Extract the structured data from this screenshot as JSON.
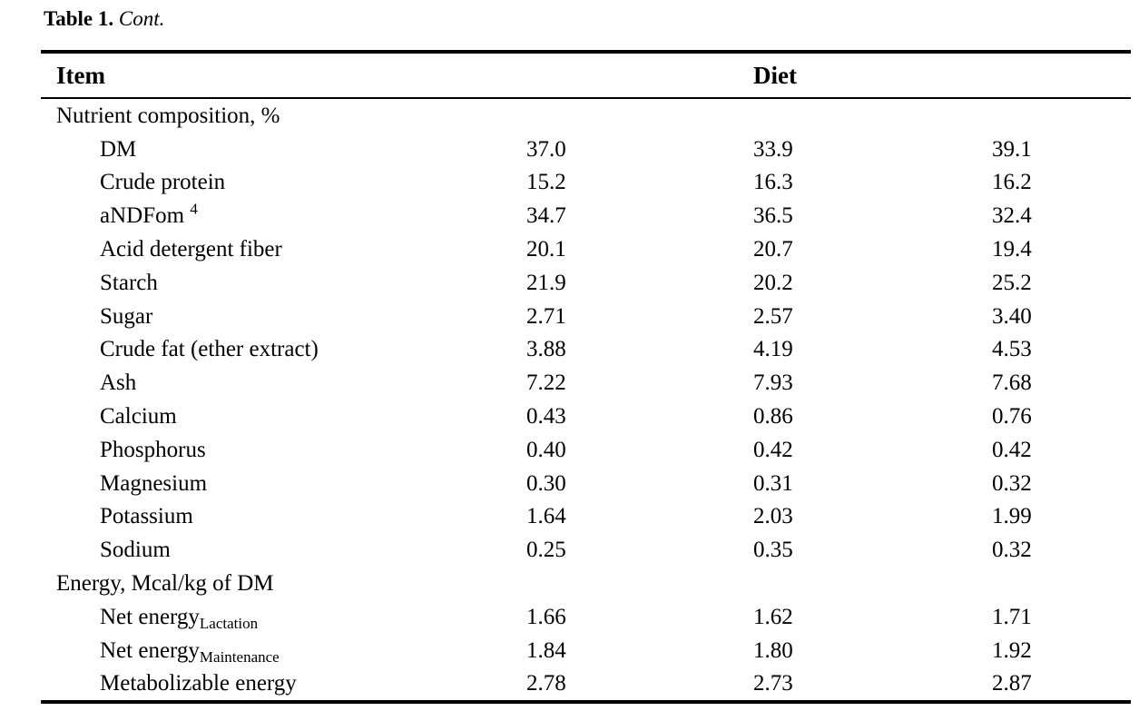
{
  "title": {
    "label": "Table 1.",
    "cont": "Cont."
  },
  "table": {
    "columns": {
      "item": "Item",
      "diet": "Diet"
    },
    "rows": [
      {
        "type": "section",
        "label": "Nutrient composition, %",
        "values": [
          "",
          "",
          ""
        ]
      },
      {
        "type": "item",
        "label": "DM",
        "values": [
          "37.0",
          "33.9",
          "39.1"
        ]
      },
      {
        "type": "item",
        "label": "Crude protein",
        "values": [
          "15.2",
          "16.3",
          "16.2"
        ]
      },
      {
        "type": "item",
        "label": "aNDFom",
        "sup": "4",
        "values": [
          "34.7",
          "36.5",
          "32.4"
        ]
      },
      {
        "type": "item",
        "label": "Acid detergent fiber",
        "values": [
          "20.1",
          "20.7",
          "19.4"
        ]
      },
      {
        "type": "item",
        "label": "Starch",
        "values": [
          "21.9",
          "20.2",
          "25.2"
        ]
      },
      {
        "type": "item",
        "label": "Sugar",
        "values": [
          "2.71",
          "2.57",
          "3.40"
        ]
      },
      {
        "type": "item",
        "label": "Crude fat (ether extract)",
        "values": [
          "3.88",
          "4.19",
          "4.53"
        ]
      },
      {
        "type": "item",
        "label": "Ash",
        "values": [
          "7.22",
          "7.93",
          "7.68"
        ]
      },
      {
        "type": "item",
        "label": "Calcium",
        "values": [
          "0.43",
          "0.86",
          "0.76"
        ]
      },
      {
        "type": "item",
        "label": "Phosphorus",
        "values": [
          "0.40",
          "0.42",
          "0.42"
        ]
      },
      {
        "type": "item",
        "label": "Magnesium",
        "values": [
          "0.30",
          "0.31",
          "0.32"
        ]
      },
      {
        "type": "item",
        "label": "Potassium",
        "values": [
          "1.64",
          "2.03",
          "1.99"
        ]
      },
      {
        "type": "item",
        "label": "Sodium",
        "values": [
          "0.25",
          "0.35",
          "0.32"
        ]
      },
      {
        "type": "section",
        "label": "Energy, Mcal/kg of DM",
        "values": [
          "",
          "",
          ""
        ]
      },
      {
        "type": "item",
        "label": "Net energy",
        "sub": "Lactation",
        "values": [
          "1.66",
          "1.62",
          "1.71"
        ]
      },
      {
        "type": "item",
        "label": "Net energy",
        "sub": "Maintenance",
        "values": [
          "1.84",
          "1.80",
          "1.92"
        ]
      },
      {
        "type": "item",
        "label": "Metabolizable energy",
        "values": [
          "2.78",
          "2.73",
          "2.87"
        ]
      }
    ]
  }
}
